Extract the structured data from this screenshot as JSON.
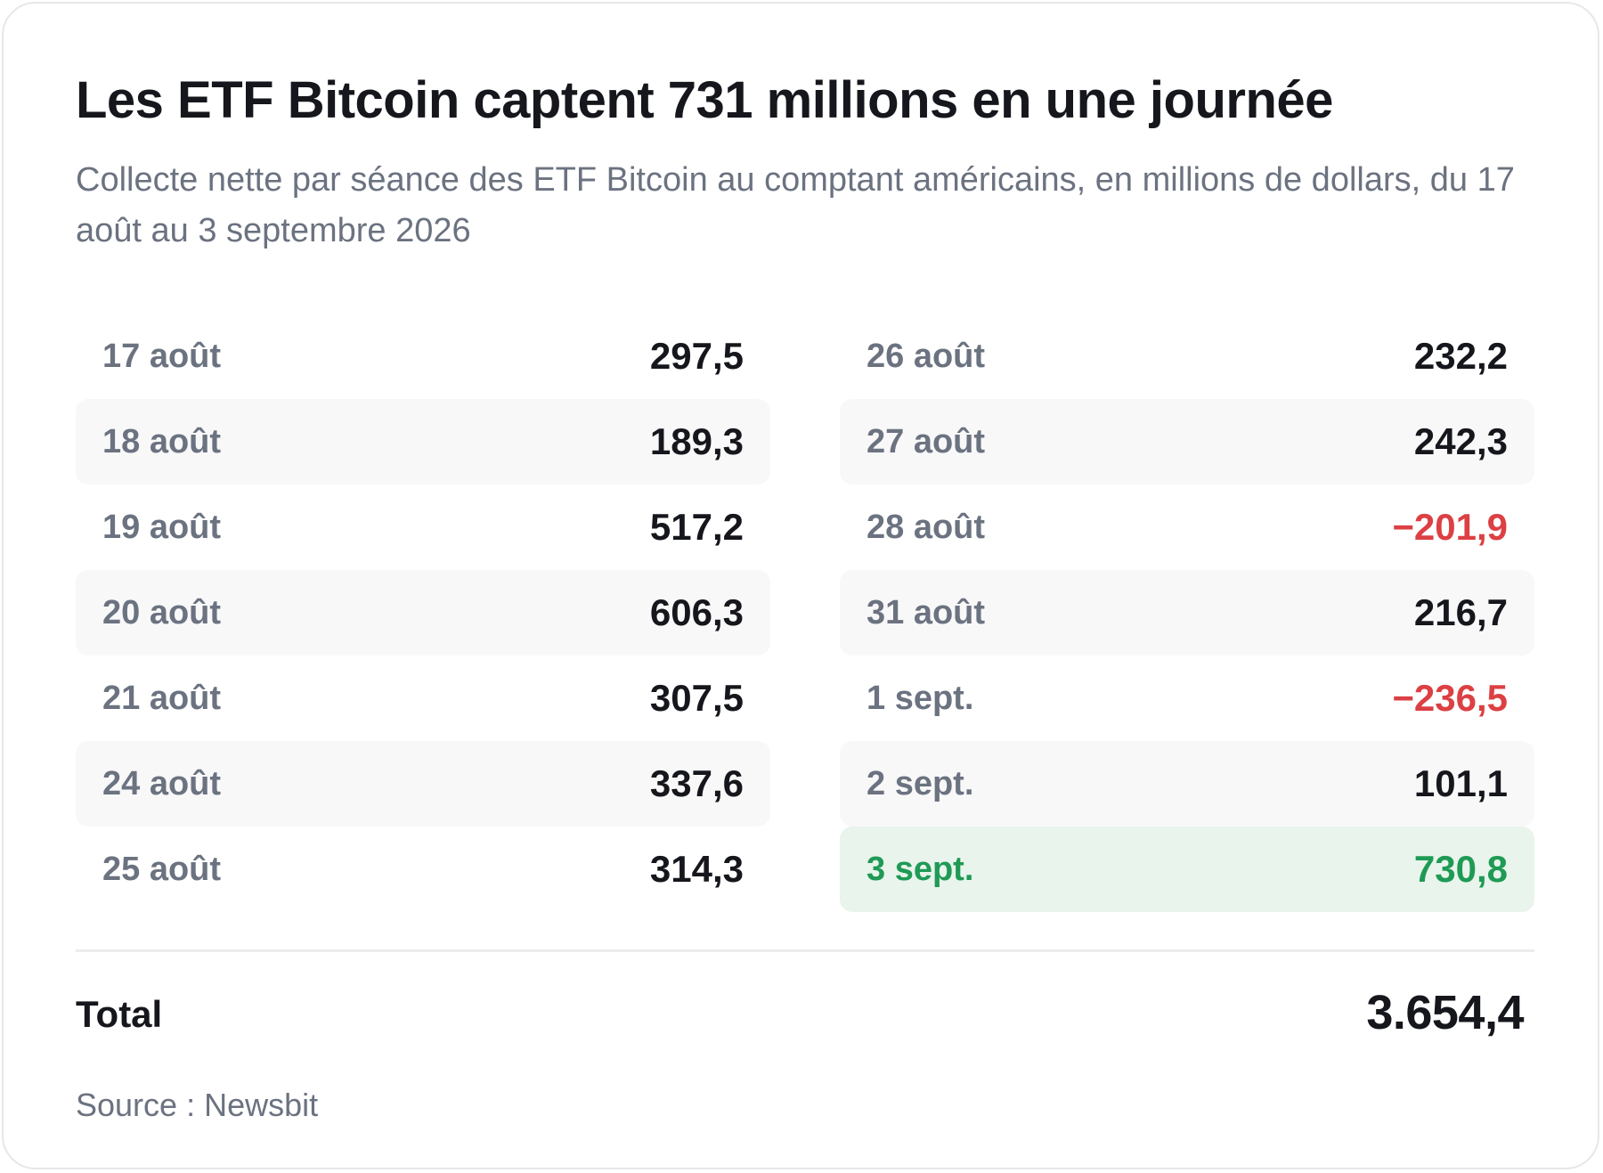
{
  "title": "Les ETF Bitcoin captent 731 millions en une journée",
  "subtitle": "Collecte nette par séance des ETF Bitcoin au comptant américains, en millions de dollars, du 17 août au 3 septembre 2026",
  "colors": {
    "text": "#15171c",
    "muted": "#6b7280",
    "negative": "#dc4043",
    "highlight_text": "#1f9a55",
    "highlight_bg": "#e8f4ec",
    "stripe_bg": "#f8f8f9"
  },
  "chart_data": {
    "type": "table",
    "title": "Les ETF Bitcoin captent 731 millions en une journée",
    "subtitle": "Collecte nette par séance des ETF Bitcoin au comptant américains, en millions de dollars, du 17 août au 3 septembre 2026",
    "columns": [
      [
        {
          "date": "17 août",
          "display": "297,5",
          "value": 297.5
        },
        {
          "date": "18 août",
          "display": "189,3",
          "value": 189.3
        },
        {
          "date": "19 août",
          "display": "517,2",
          "value": 517.2
        },
        {
          "date": "20 août",
          "display": "606,3",
          "value": 606.3
        },
        {
          "date": "21 août",
          "display": "307,5",
          "value": 307.5
        },
        {
          "date": "24 août",
          "display": "337,6",
          "value": 337.6
        },
        {
          "date": "25 août",
          "display": "314,3",
          "value": 314.3
        }
      ],
      [
        {
          "date": "26 août",
          "display": "232,2",
          "value": 232.2
        },
        {
          "date": "27 août",
          "display": "242,3",
          "value": 242.3
        },
        {
          "date": "28 août",
          "display": "−201,9",
          "value": -201.9
        },
        {
          "date": "31 août",
          "display": "216,7",
          "value": 216.7
        },
        {
          "date": "1 sept.",
          "display": "−236,5",
          "value": -236.5
        },
        {
          "date": "2 sept.",
          "display": "101,1",
          "value": 101.1
        },
        {
          "date": "3 sept.",
          "display": "730,8",
          "value": 730.8,
          "highlight": true
        }
      ]
    ],
    "total_label": "Total",
    "total_display": "3.654,4",
    "total_value": 3654.4,
    "source": "Source : Newsbit"
  }
}
